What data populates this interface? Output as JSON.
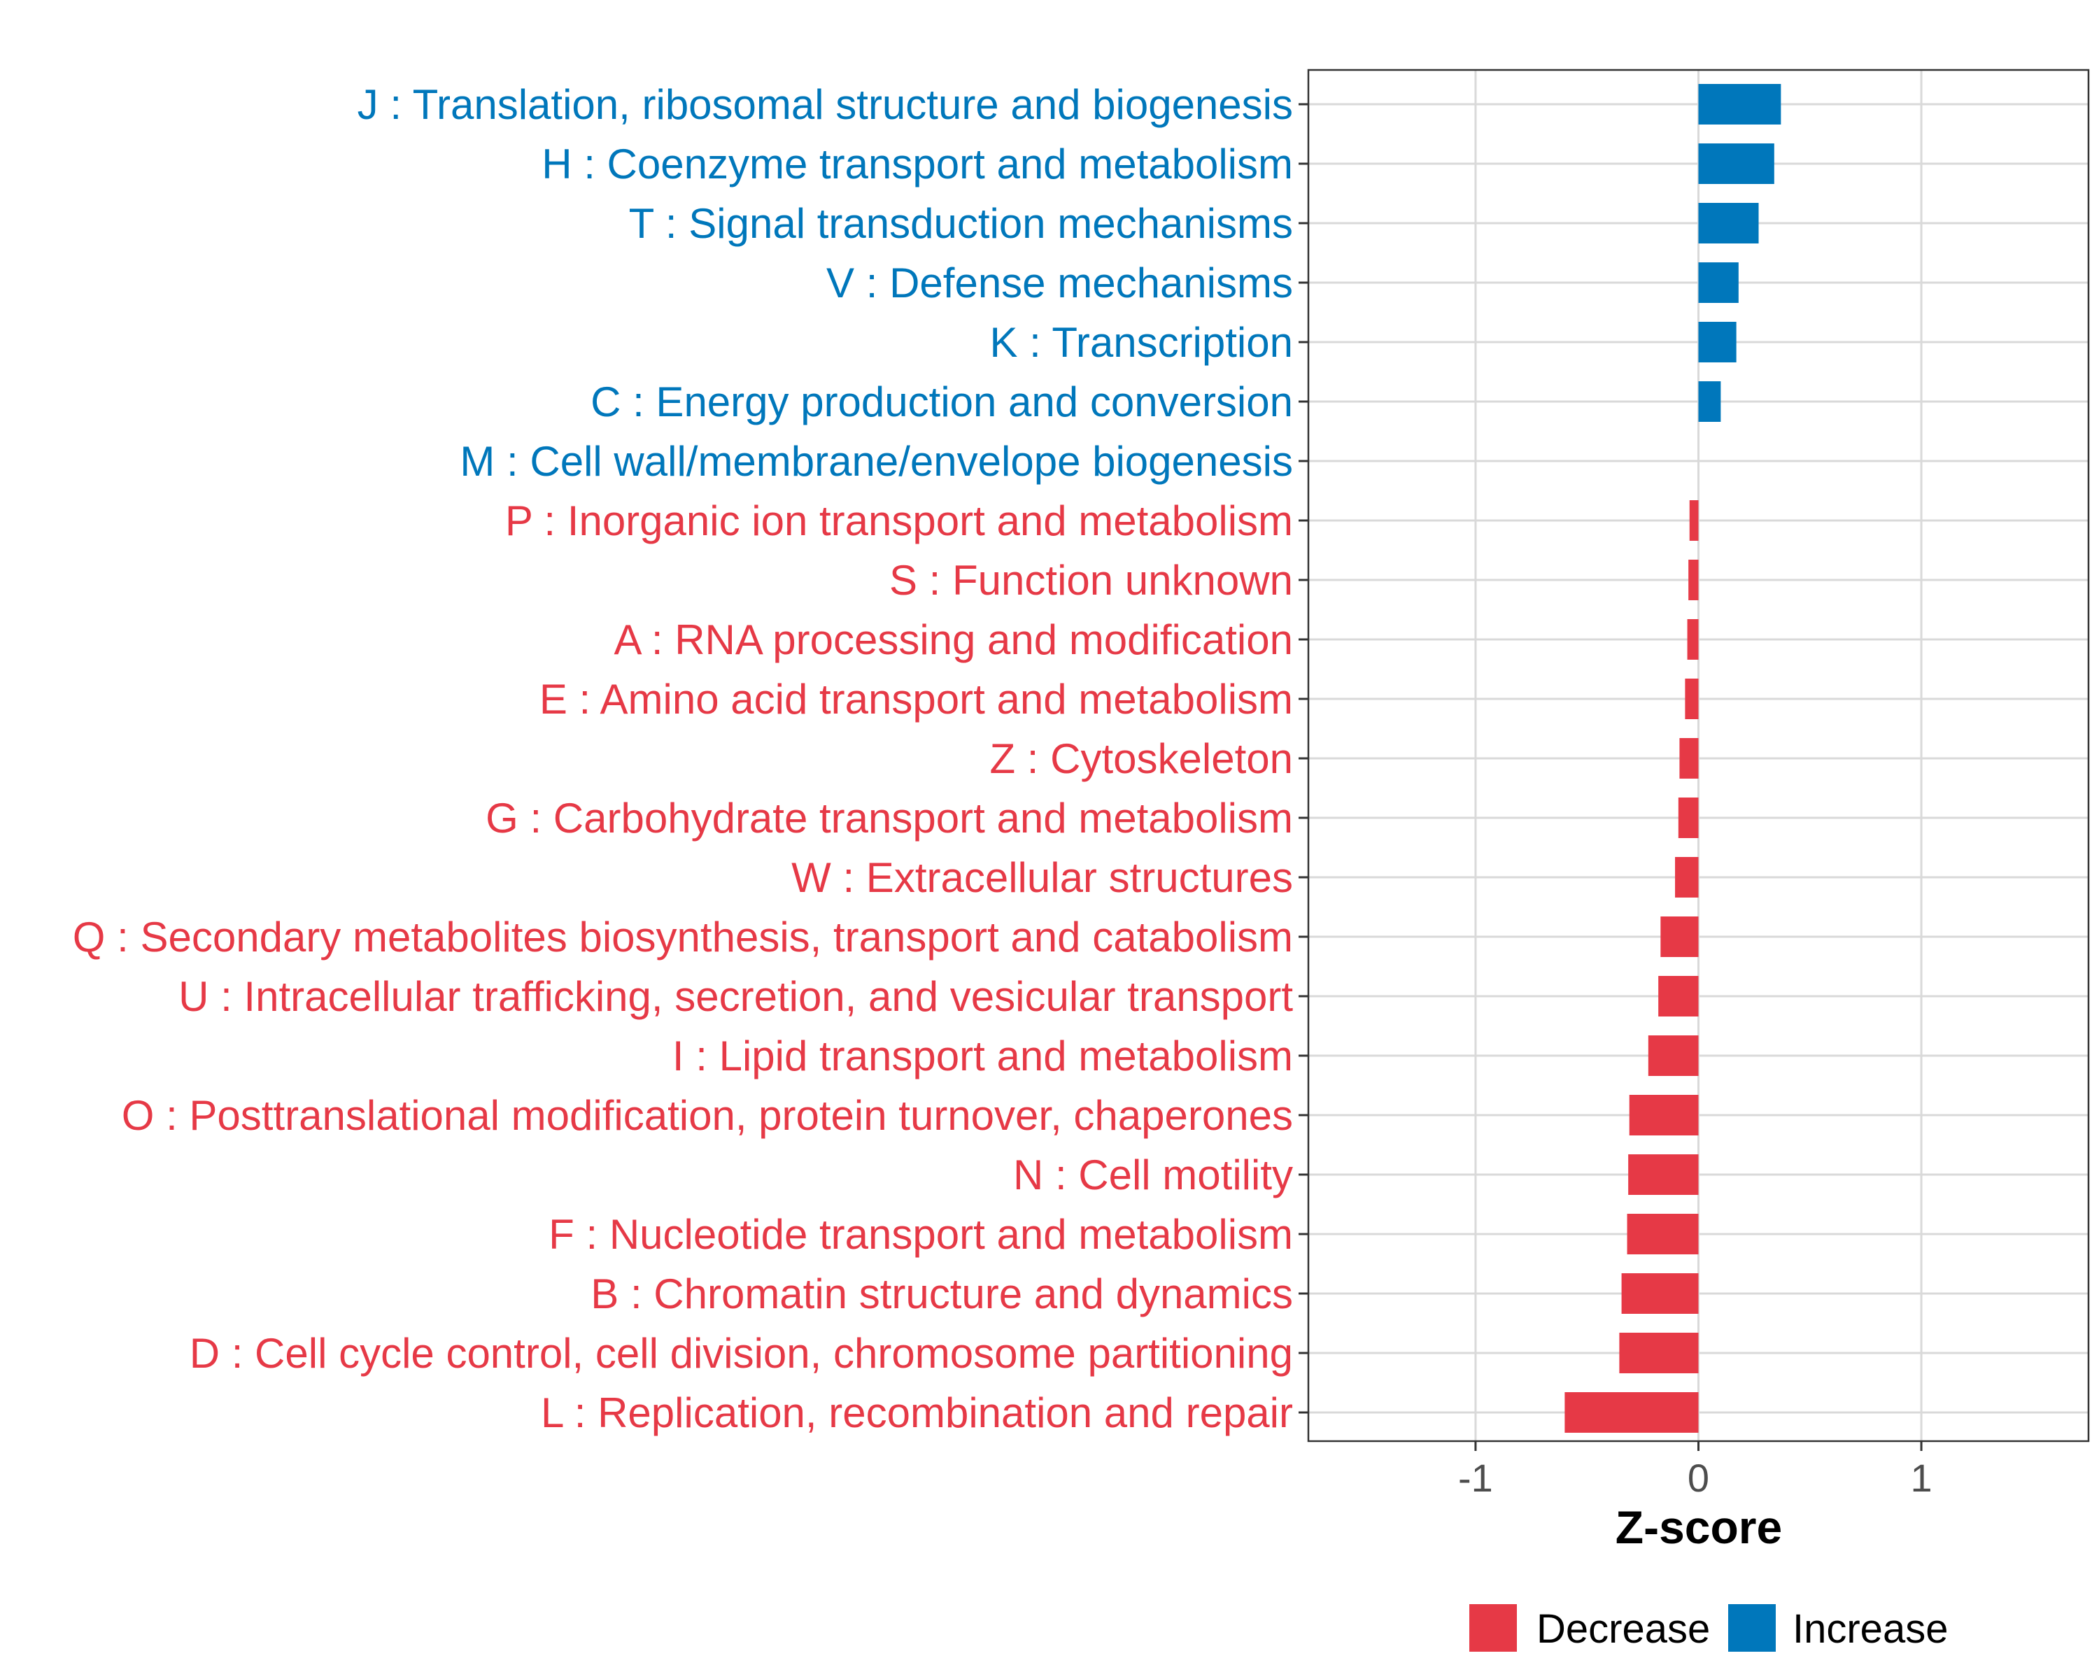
{
  "chart_data": {
    "type": "bar",
    "orientation": "horizontal",
    "title": "",
    "xlabel": "Z-score",
    "ylabel": "",
    "xlim": [
      -1.75,
      1.75
    ],
    "xticks": [
      {
        "value": -1,
        "label": "-1"
      },
      {
        "value": 0,
        "label": "0"
      },
      {
        "value": 1,
        "label": "1"
      }
    ],
    "grid": true,
    "legend": {
      "position": "bottom",
      "entries": [
        {
          "key": "decrease",
          "label": "Decrease",
          "color": "#e63946"
        },
        {
          "key": "increase",
          "label": "Increase",
          "color": "#0077bb"
        }
      ]
    },
    "categories": [
      "J : Translation, ribosomal structure and biogenesis",
      "H : Coenzyme transport and metabolism",
      "T : Signal transduction mechanisms",
      "V : Defense mechanisms",
      "K : Transcription",
      "C : Energy production and conversion",
      "M : Cell wall/membrane/envelope biogenesis",
      "P : Inorganic ion transport and metabolism",
      "S : Function unknown",
      "A : RNA processing and modification",
      "E : Amino acid transport and metabolism",
      "Z : Cytoskeleton",
      "G : Carbohydrate transport and metabolism",
      "W : Extracellular structures",
      "Q : Secondary metabolites biosynthesis, transport and catabolism",
      "U : Intracellular trafficking, secretion, and vesicular transport",
      "I : Lipid transport and metabolism",
      "O : Posttranslational modification, protein turnover, chaperones",
      "N : Cell motility",
      "F : Nucleotide transport and metabolism",
      "B : Chromatin structure and dynamics",
      "D : Cell cycle control, cell division, chromosome partitioning",
      "L : Replication, recombination and repair"
    ],
    "values": [
      0.37,
      0.34,
      0.27,
      0.18,
      0.17,
      0.1,
      0.0,
      -0.04,
      -0.045,
      -0.05,
      -0.06,
      -0.085,
      -0.09,
      -0.105,
      -0.17,
      -0.18,
      -0.225,
      -0.31,
      -0.315,
      -0.32,
      -0.345,
      -0.355,
      -0.6
    ],
    "groups": [
      "increase",
      "increase",
      "increase",
      "increase",
      "increase",
      "increase",
      "increase",
      "decrease",
      "decrease",
      "decrease",
      "decrease",
      "decrease",
      "decrease",
      "decrease",
      "decrease",
      "decrease",
      "decrease",
      "decrease",
      "decrease",
      "decrease",
      "decrease",
      "decrease",
      "decrease"
    ]
  }
}
